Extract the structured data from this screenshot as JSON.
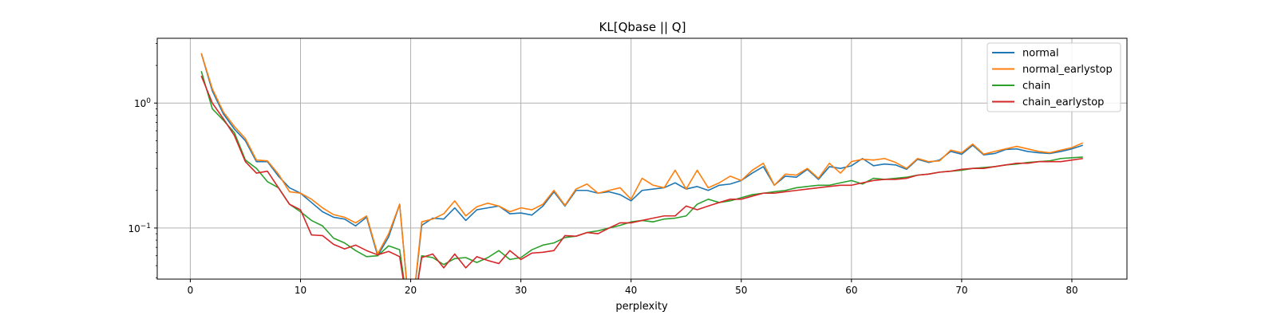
{
  "chart_data": {
    "type": "line",
    "title": "KL[Qbase || Q]",
    "xlabel": "perplexity",
    "ylabel": "",
    "yscale": "log",
    "xlim": [
      -3,
      85
    ],
    "ylim": [
      0.039,
      3.3
    ],
    "x_ticks": [
      0,
      10,
      20,
      30,
      40,
      50,
      60,
      70,
      80
    ],
    "y_ticks": [
      {
        "value": 1.0,
        "base": "10",
        "exp": "0"
      },
      {
        "value": 0.1,
        "base": "10",
        "exp": "−1"
      }
    ],
    "grid": true,
    "legend_position": "top-right",
    "x": [
      1,
      2,
      3,
      4,
      5,
      6,
      7,
      8,
      9,
      10,
      11,
      12,
      13,
      14,
      15,
      16,
      17,
      18,
      19,
      20,
      21,
      22,
      23,
      24,
      25,
      26,
      27,
      28,
      29,
      30,
      31,
      32,
      33,
      34,
      35,
      36,
      37,
      38,
      39,
      40,
      41,
      42,
      43,
      44,
      45,
      46,
      47,
      48,
      49,
      50,
      51,
      52,
      53,
      54,
      55,
      56,
      57,
      58,
      59,
      60,
      61,
      62,
      63,
      64,
      65,
      66,
      67,
      68,
      69,
      70,
      71,
      72,
      73,
      74,
      75,
      76,
      77,
      78,
      79,
      80,
      81
    ],
    "series": [
      {
        "name": "normal",
        "color": "#1f77b4",
        "values": [
          2.5,
          1.25,
          0.82,
          0.62,
          0.5,
          0.34,
          0.34,
          0.26,
          0.21,
          0.19,
          0.16,
          0.135,
          0.122,
          0.118,
          0.104,
          0.122,
          0.06,
          0.085,
          0.155,
          null,
          0.105,
          0.12,
          0.118,
          0.145,
          0.115,
          0.14,
          0.145,
          0.15,
          0.13,
          0.132,
          0.127,
          0.15,
          0.195,
          0.15,
          0.2,
          0.2,
          0.19,
          0.195,
          0.185,
          0.165,
          0.2,
          0.205,
          0.21,
          0.23,
          0.205,
          0.215,
          0.2,
          0.22,
          0.225,
          0.24,
          0.275,
          0.31,
          0.22,
          0.26,
          0.255,
          0.295,
          0.245,
          0.31,
          0.3,
          0.315,
          0.36,
          0.315,
          0.325,
          0.32,
          0.295,
          0.355,
          0.335,
          0.35,
          0.41,
          0.39,
          0.46,
          0.385,
          0.395,
          0.425,
          0.43,
          0.41,
          0.4,
          0.395,
          0.41,
          0.43,
          0.46
        ]
      },
      {
        "name": "normal_earlystop",
        "color": "#ff7f0e",
        "values": [
          2.5,
          1.3,
          0.85,
          0.65,
          0.52,
          0.35,
          0.345,
          0.27,
          0.195,
          0.19,
          0.17,
          0.145,
          0.128,
          0.122,
          0.11,
          0.125,
          0.062,
          0.09,
          0.155,
          null,
          0.112,
          0.118,
          0.13,
          0.165,
          0.125,
          0.148,
          0.158,
          0.15,
          0.135,
          0.145,
          0.14,
          0.155,
          0.2,
          0.152,
          0.205,
          0.225,
          0.19,
          0.2,
          0.21,
          0.17,
          0.25,
          0.22,
          0.21,
          0.29,
          0.205,
          0.29,
          0.21,
          0.23,
          0.26,
          0.24,
          0.29,
          0.33,
          0.22,
          0.27,
          0.265,
          0.3,
          0.25,
          0.33,
          0.275,
          0.34,
          0.355,
          0.35,
          0.36,
          0.335,
          0.3,
          0.36,
          0.34,
          0.345,
          0.42,
          0.4,
          0.47,
          0.39,
          0.41,
          0.43,
          0.45,
          0.43,
          0.41,
          0.4,
          0.42,
          0.44,
          0.48
        ]
      },
      {
        "name": "chain",
        "color": "#2ca02c",
        "values": [
          1.8,
          0.9,
          0.73,
          0.58,
          0.35,
          0.3,
          0.235,
          0.21,
          0.155,
          0.135,
          0.115,
          0.104,
          0.083,
          0.076,
          0.066,
          0.059,
          0.06,
          0.072,
          0.067,
          null,
          0.06,
          0.058,
          0.051,
          0.057,
          0.058,
          0.053,
          0.058,
          0.066,
          0.056,
          0.058,
          0.067,
          0.073,
          0.076,
          0.084,
          0.086,
          0.092,
          0.095,
          0.1,
          0.105,
          0.112,
          0.115,
          0.112,
          0.118,
          0.12,
          0.125,
          0.155,
          0.17,
          0.16,
          0.165,
          0.175,
          0.185,
          0.19,
          0.195,
          0.2,
          0.21,
          0.215,
          0.22,
          0.22,
          0.23,
          0.24,
          0.225,
          0.25,
          0.245,
          0.25,
          0.255,
          0.265,
          0.27,
          0.28,
          0.285,
          0.29,
          0.3,
          0.305,
          0.31,
          0.32,
          0.325,
          0.335,
          0.34,
          0.345,
          0.36,
          0.365,
          0.37
        ]
      },
      {
        "name": "chain_earlystop",
        "color": "#d62728",
        "values": [
          1.65,
          1.0,
          0.75,
          0.55,
          0.34,
          0.275,
          0.285,
          0.21,
          0.155,
          0.14,
          0.088,
          0.087,
          0.074,
          0.068,
          0.073,
          0.066,
          0.061,
          0.065,
          0.059,
          null,
          0.058,
          0.062,
          0.048,
          0.062,
          0.048,
          0.059,
          0.055,
          0.052,
          0.066,
          0.056,
          0.063,
          0.064,
          0.066,
          0.087,
          0.086,
          0.092,
          0.09,
          0.1,
          0.11,
          0.11,
          0.115,
          0.12,
          0.125,
          0.125,
          0.15,
          0.14,
          0.15,
          0.16,
          0.17,
          0.17,
          0.18,
          0.19,
          0.19,
          0.195,
          0.2,
          0.205,
          0.21,
          0.215,
          0.22,
          0.22,
          0.23,
          0.24,
          0.245,
          0.245,
          0.25,
          0.265,
          0.27,
          0.28,
          0.285,
          0.295,
          0.3,
          0.3,
          0.31,
          0.32,
          0.33,
          0.33,
          0.34,
          0.34,
          0.34,
          0.35,
          0.36
        ]
      }
    ]
  }
}
